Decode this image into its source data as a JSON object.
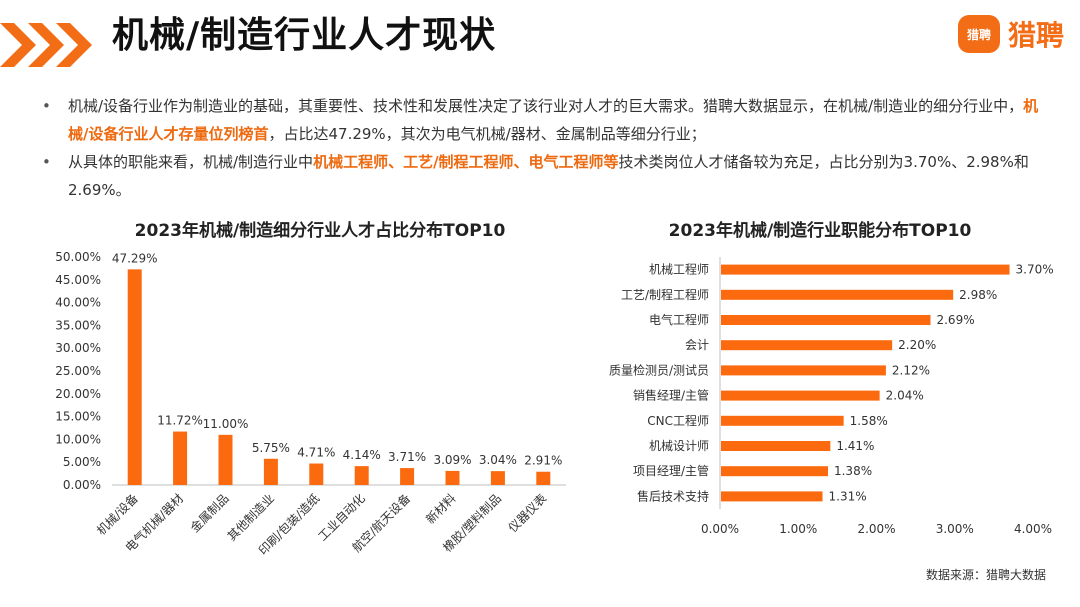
{
  "page": {
    "title": "机械/制造行业人才现状",
    "logo_badge": "猎聘",
    "logo_text": "猎聘",
    "source": "数据来源：猎聘大数据"
  },
  "bullets": [
    {
      "before": "机械/设备行业作为制造业的基础，其重要性、技术性和发展性决定了该行业对人才的巨大需求。猎聘大数据显示，在机械/制造业的细分行业中，",
      "highlight": "机械/设备行业人才存量位列榜首",
      "after": "，占比达47.29%，其次为电气机械/器材、金属制品等细分行业；"
    },
    {
      "before": "从具体的职能来看，机械/制造行业中",
      "highlight": "机械工程师、工艺/制程工程师、电气工程师等",
      "after": "技术类岗位人才储备较为充足，占比分别为3.70%、2.98%和2.69%。"
    }
  ],
  "colors": {
    "accent": "#f36d16",
    "bar": "#fb6a0f",
    "axis": "#bfbfbf"
  },
  "chart_data": [
    {
      "type": "bar",
      "title": "2023年机械/制造细分行业人才占比分布TOP10",
      "categories": [
        "机械/设备",
        "电气机械/器材",
        "金属制品",
        "其他制造业",
        "印刷/包装/造纸",
        "工业自动化",
        "航空/航天设备",
        "新材料",
        "橡胶/塑料制品",
        "仪器仪表"
      ],
      "values": [
        47.29,
        11.72,
        11.0,
        5.75,
        4.71,
        4.14,
        3.71,
        3.09,
        3.04,
        2.91
      ],
      "value_labels": [
        "47.29%",
        "11.72%",
        "11.00%",
        "5.75%",
        "4.71%",
        "4.14%",
        "3.71%",
        "3.09%",
        "3.04%",
        "2.91%"
      ],
      "ylim": [
        0,
        50
      ],
      "yticks": [
        "0.00%",
        "5.00%",
        "10.00%",
        "15.00%",
        "20.00%",
        "25.00%",
        "30.00%",
        "35.00%",
        "40.00%",
        "45.00%",
        "50.00%"
      ],
      "grid": false,
      "legend": "none"
    },
    {
      "type": "bar",
      "orientation": "horizontal",
      "title": "2023年机械/制造行业职能分布TOP10",
      "categories": [
        "机械工程师",
        "工艺/制程工程师",
        "电气工程师",
        "会计",
        "质量检测员/测试员",
        "销售经理/主管",
        "CNC工程师",
        "机械设计师",
        "项目经理/主管",
        "售后技术支持"
      ],
      "values": [
        3.7,
        2.98,
        2.69,
        2.2,
        2.12,
        2.04,
        1.58,
        1.41,
        1.38,
        1.31
      ],
      "value_labels": [
        "3.70%",
        "2.98%",
        "2.69%",
        "2.20%",
        "2.12%",
        "2.04%",
        "1.58%",
        "1.41%",
        "1.38%",
        "1.31%"
      ],
      "xlim": [
        0,
        4
      ],
      "xticks": [
        "0.00%",
        "1.00%",
        "2.00%",
        "3.00%",
        "4.00%"
      ],
      "grid": false,
      "legend": "none"
    }
  ]
}
